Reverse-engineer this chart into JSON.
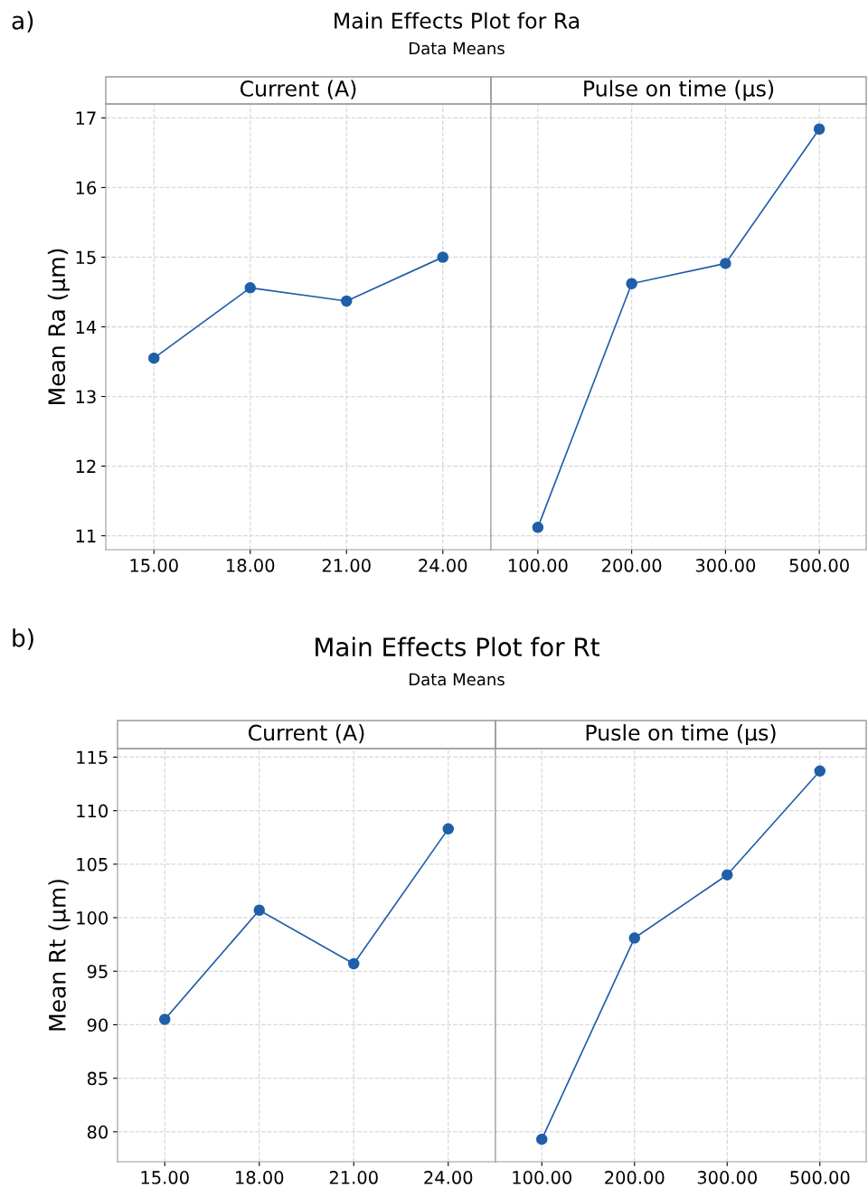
{
  "chart_data": [
    {
      "type": "line",
      "title": "Current (A)",
      "subtitle": "Main Effects Plot for Ra",
      "annotations": [
        "a)",
        "Data Means"
      ],
      "ylabel": "Mean Ra (µm)",
      "categories": [
        "15.00",
        "18.00",
        "21.00",
        "24.00"
      ],
      "series": [
        {
          "color": "#1f5fa8",
          "values": [
            13.55,
            14.56,
            14.37,
            15.0
          ]
        }
      ],
      "ylim": [
        10.8,
        17.2
      ],
      "yticks": [
        11,
        12,
        13,
        14,
        15,
        16,
        17
      ],
      "grid": true,
      "marker": "circle"
    },
    {
      "type": "line",
      "title": "Pulse on time (µs)",
      "categories": [
        "100.00",
        "200.00",
        "300.00",
        "500.00"
      ],
      "series": [
        {
          "color": "#1f5fa8",
          "values": [
            11.12,
            14.62,
            14.91,
            16.84
          ]
        }
      ],
      "ylim": [
        10.8,
        17.2
      ],
      "yticks": [
        11,
        12,
        13,
        14,
        15,
        16,
        17
      ],
      "grid": true,
      "marker": "circle",
      "tick_labels": "x"
    },
    {
      "type": "line",
      "title": "Current (A)",
      "subtitle": "Main Effects Plot for Rt",
      "annotations": [
        "b)",
        "Data Means"
      ],
      "ylabel": "Mean Rt (µm)",
      "categories": [
        "15.00",
        "18.00",
        "21.00",
        "24.00"
      ],
      "series": [
        {
          "color": "#1f5fa8",
          "values": [
            90.5,
            100.7,
            95.7,
            108.3
          ]
        }
      ],
      "ylim": [
        77.2,
        115.8
      ],
      "yticks": [
        80,
        85,
        90,
        95,
        100,
        105,
        110,
        115
      ],
      "grid": true,
      "marker": "circle"
    },
    {
      "type": "line",
      "title": "Pusle on time (µs)",
      "categories": [
        "100.00",
        "200.00",
        "300.00",
        "500.00"
      ],
      "series": [
        {
          "color": "#1f5fa8",
          "values": [
            79.3,
            98.1,
            104.0,
            113.7
          ]
        }
      ],
      "ylim": [
        77.2,
        115.8
      ],
      "yticks": [
        80,
        85,
        90,
        95,
        100,
        105,
        110,
        115
      ],
      "grid": true,
      "marker": "circle",
      "tick_labels": "x"
    }
  ]
}
